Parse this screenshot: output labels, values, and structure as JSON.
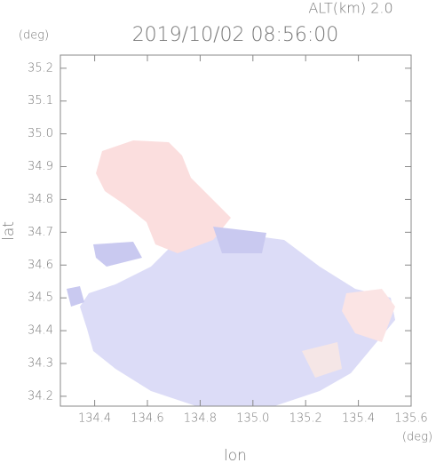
{
  "chart_data": {
    "type": "map",
    "title": "2019/10/02 08:56:00",
    "subtitle": "ALT(km) 2.0",
    "x_unit": "(deg)",
    "y_unit": "(deg)",
    "xlabel": "lon",
    "ylabel": "lat",
    "xlim": [
      134.27,
      135.6
    ],
    "ylim": [
      34.17,
      35.24
    ],
    "xticks": [
      134.4,
      134.6,
      134.8,
      {
        "value": 135,
        "label": "135.0"
      },
      135.2,
      135.4,
      135.6
    ],
    "yticks": [
      34.2,
      34.3,
      34.4,
      34.5,
      34.6,
      34.7,
      34.8,
      34.9,
      {
        "value": 35,
        "label": "35.0"
      },
      35.1,
      35.2
    ]
  }
}
